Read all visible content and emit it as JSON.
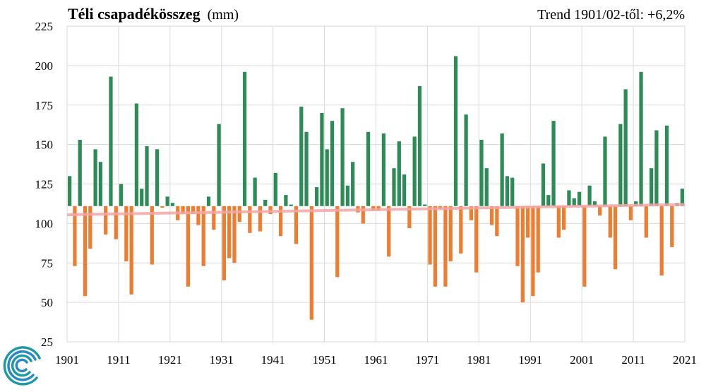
{
  "chart_data": {
    "type": "bar",
    "title": "Téli csapadékösszeg",
    "title_unit": "(mm)",
    "annotation": "Trend 1901/02-től: +6,2%",
    "ylim": [
      25,
      225
    ],
    "yticks": [
      "225",
      "200",
      "175",
      "150",
      "125",
      "100",
      "75",
      "50",
      "25"
    ],
    "xticks": [
      "1901",
      "1911",
      "1921",
      "1931",
      "1941",
      "1951",
      "1961",
      "1971",
      "1981",
      "1991",
      "2001",
      "2011",
      "2021"
    ],
    "x_start": 1902,
    "baseline": 111,
    "trend": [
      105.5,
      112.0
    ],
    "grid": true,
    "colors": {
      "above": "#2e8b57",
      "below": "#ed7d31",
      "trend": "#f4a7a7",
      "grid": "#d9d9d9"
    },
    "values": [
      130,
      73,
      153,
      54,
      84,
      147,
      139,
      93,
      193,
      90,
      125,
      76,
      55,
      176,
      122,
      149,
      74,
      147,
      110,
      117,
      113,
      102,
      106,
      60,
      106,
      99,
      73,
      117,
      96,
      163,
      64,
      78,
      75,
      101,
      196,
      94,
      129,
      95,
      115,
      106,
      132,
      92,
      118,
      112,
      87,
      174,
      158,
      39,
      123,
      170,
      147,
      165,
      66,
      173,
      124,
      139,
      107,
      100,
      158,
      108,
      108,
      157,
      79,
      135,
      152,
      131,
      97,
      155,
      187,
      112,
      74,
      60,
      109,
      60,
      76,
      206,
      81,
      169,
      102,
      69,
      153,
      135,
      99,
      92,
      157,
      130,
      129,
      73,
      50,
      91,
      54,
      69,
      138,
      118,
      165,
      91,
      96,
      121,
      116,
      120,
      60,
      124,
      114,
      105,
      155,
      91,
      71,
      163,
      185,
      102,
      114,
      196,
      91,
      135,
      159,
      67,
      162,
      85,
      113,
      122
    ]
  },
  "logo": {
    "name": "swirl-logo-icon"
  }
}
